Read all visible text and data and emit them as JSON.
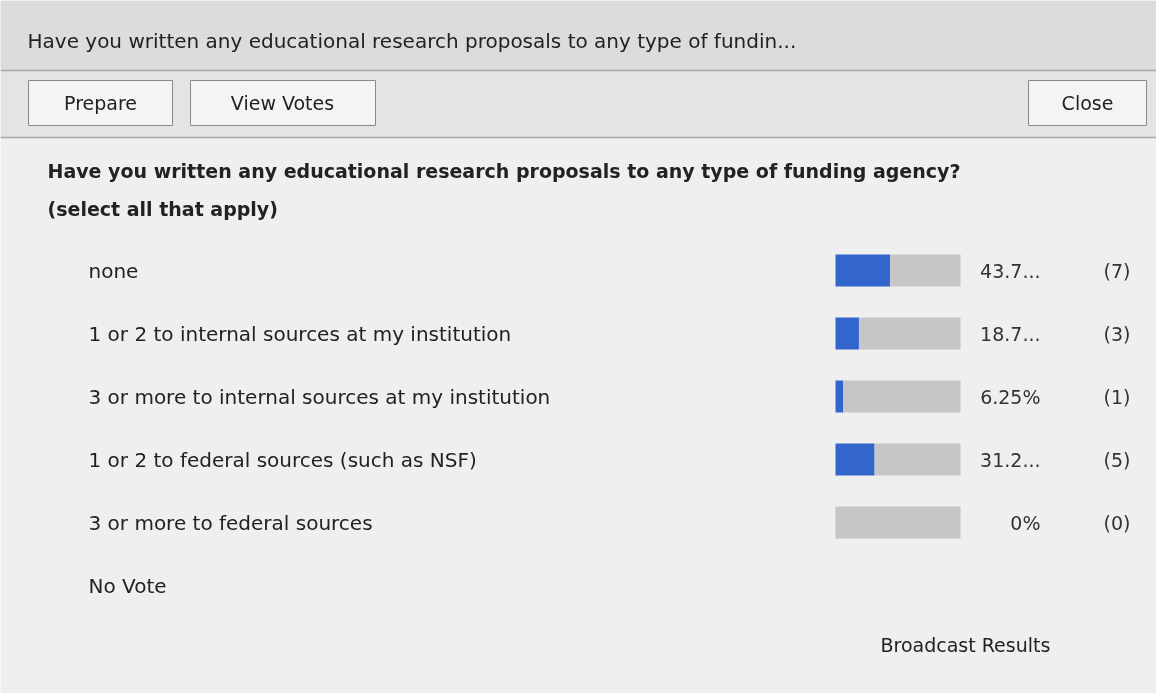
{
  "chart_data": {
    "type": "bar",
    "orientation": "horizontal",
    "stacked": true,
    "title": "Have you written any educational research proposals to any type of funding agency?",
    "subtitle": "(select all that apply)",
    "categories": [
      "none",
      "1 or 2 to internal sources at my institution",
      "3 or more to internal sources at my institution",
      "1 or 2 to federal sources (such as NSF)",
      "3 or more to federal sources"
    ],
    "series": [
      {
        "color": "#3366cc",
        "values": [
          43.75,
          18.75,
          6.25,
          31.25,
          0
        ],
        "value_labels": [
          "43.7...",
          "18.7...",
          "6.25%",
          "31.2...",
          "0%"
        ]
      },
      {
        "color": "#c6c6c6",
        "values": [
          56.25,
          81.25,
          93.75,
          68.75,
          100
        ]
      }
    ],
    "xlim": [
      0,
      100
    ],
    "grid": false,
    "annotations": [
      "Have you written any educational research proposals to any type of fundin...",
      "Prepare",
      "View Votes",
      "Close",
      "No Vote",
      "Broadcast Results",
      "(7)",
      "(3)",
      "(1)",
      "(5)",
      "(0)"
    ]
  }
}
